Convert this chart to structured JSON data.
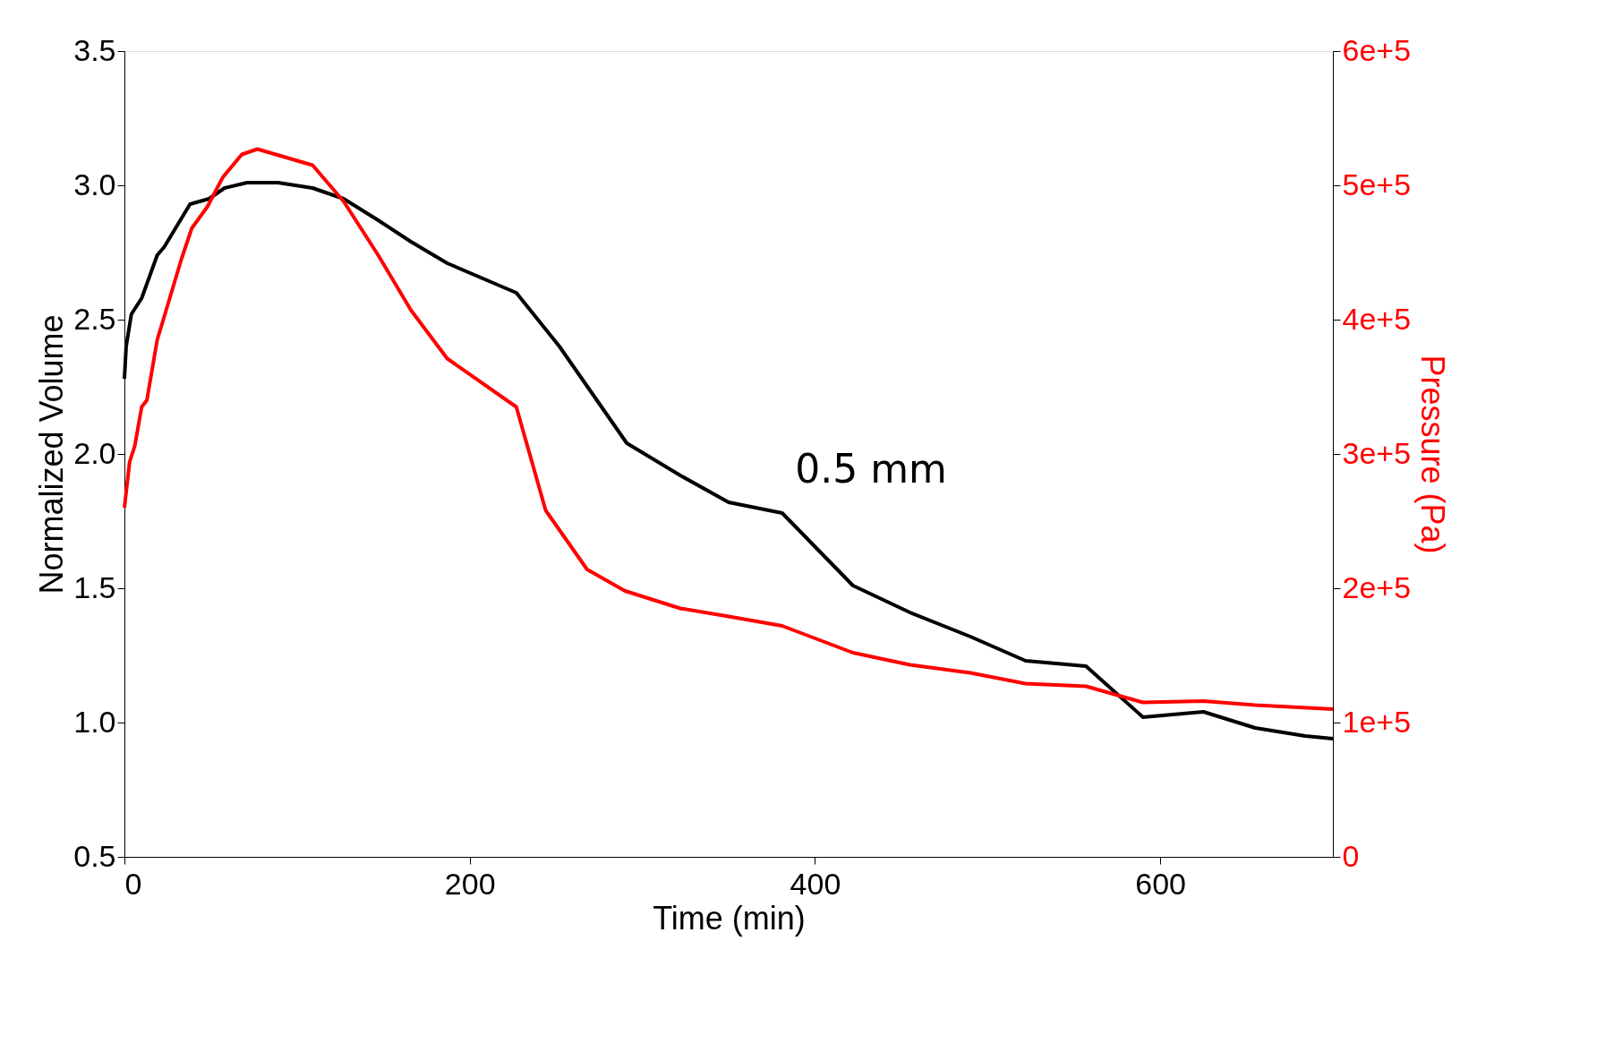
{
  "chart_data": {
    "type": "line",
    "xlabel": "Time (min)",
    "ylabel": "Normalized Volume",
    "y2label": "Pressure (Pa)",
    "xlim": [
      0,
      700
    ],
    "xticks": [
      0,
      200,
      400,
      600
    ],
    "ylim": [
      0.5,
      3.5
    ],
    "yticks": [
      {
        "value": 0.5,
        "label": "0.5"
      },
      {
        "value": 1,
        "label": "1.0"
      },
      {
        "value": 1.5,
        "label": "1.5"
      },
      {
        "value": 2,
        "label": "2.0"
      },
      {
        "value": 2.5,
        "label": "2.5"
      },
      {
        "value": 3,
        "label": "3.0"
      },
      {
        "value": 3.5,
        "label": "3.5"
      }
    ],
    "y2lim": [
      0,
      600000
    ],
    "y2ticks": [
      {
        "value": 0,
        "label": "0"
      },
      {
        "value": 100000,
        "label": "1e+5"
      },
      {
        "value": 200000,
        "label": "2e+5"
      },
      {
        "value": 300000,
        "label": "3e+5"
      },
      {
        "value": 400000,
        "label": "4e+5"
      },
      {
        "value": 500000,
        "label": "5e+5"
      },
      {
        "value": 600000,
        "label": "6e+5"
      }
    ],
    "grid": false,
    "marker": "none",
    "line_style": "solid",
    "annotations": [
      "0.5 mm"
    ],
    "series": [
      {
        "color": "#000000",
        "x": [
          0,
          1,
          4,
          10,
          19,
          23,
          38,
          49,
          58,
          71,
          89,
          109,
          127,
          147,
          166,
          187,
          227,
          252,
          291,
          322,
          350,
          381,
          422,
          455,
          490,
          522,
          557,
          590,
          625,
          655,
          684,
          700
        ],
        "values": [
          2.28,
          2.4,
          2.52,
          2.58,
          2.74,
          2.77,
          2.93,
          2.95,
          2.99,
          3.01,
          3.01,
          2.99,
          2.95,
          2.87,
          2.79,
          2.71,
          2.6,
          2.4,
          2.04,
          1.92,
          1.82,
          1.78,
          1.51,
          1.41,
          1.32,
          1.23,
          1.21,
          1.02,
          1.04,
          0.98,
          0.95,
          0.94
        ]
      },
      {
        "color": "#ff0000",
        "axis": "y2",
        "x": [
          0,
          3,
          6,
          10,
          13,
          19,
          23,
          33,
          39,
          48,
          57,
          68,
          77,
          109,
          127,
          147,
          166,
          187,
          227,
          244,
          268,
          290,
          322,
          350,
          381,
          422,
          455,
          490,
          522,
          557,
          590,
          625,
          655,
          700
        ],
        "values": [
          260000,
          294000,
          306000,
          335000,
          340000,
          385000,
          402000,
          445000,
          468000,
          484000,
          506000,
          523000,
          527000,
          515000,
          488000,
          448000,
          407000,
          371000,
          335000,
          258000,
          214000,
          198000,
          185000,
          179000,
          172000,
          152000,
          143000,
          137000,
          129000,
          127000,
          115000,
          116000,
          113000,
          110000
        ]
      }
    ]
  }
}
